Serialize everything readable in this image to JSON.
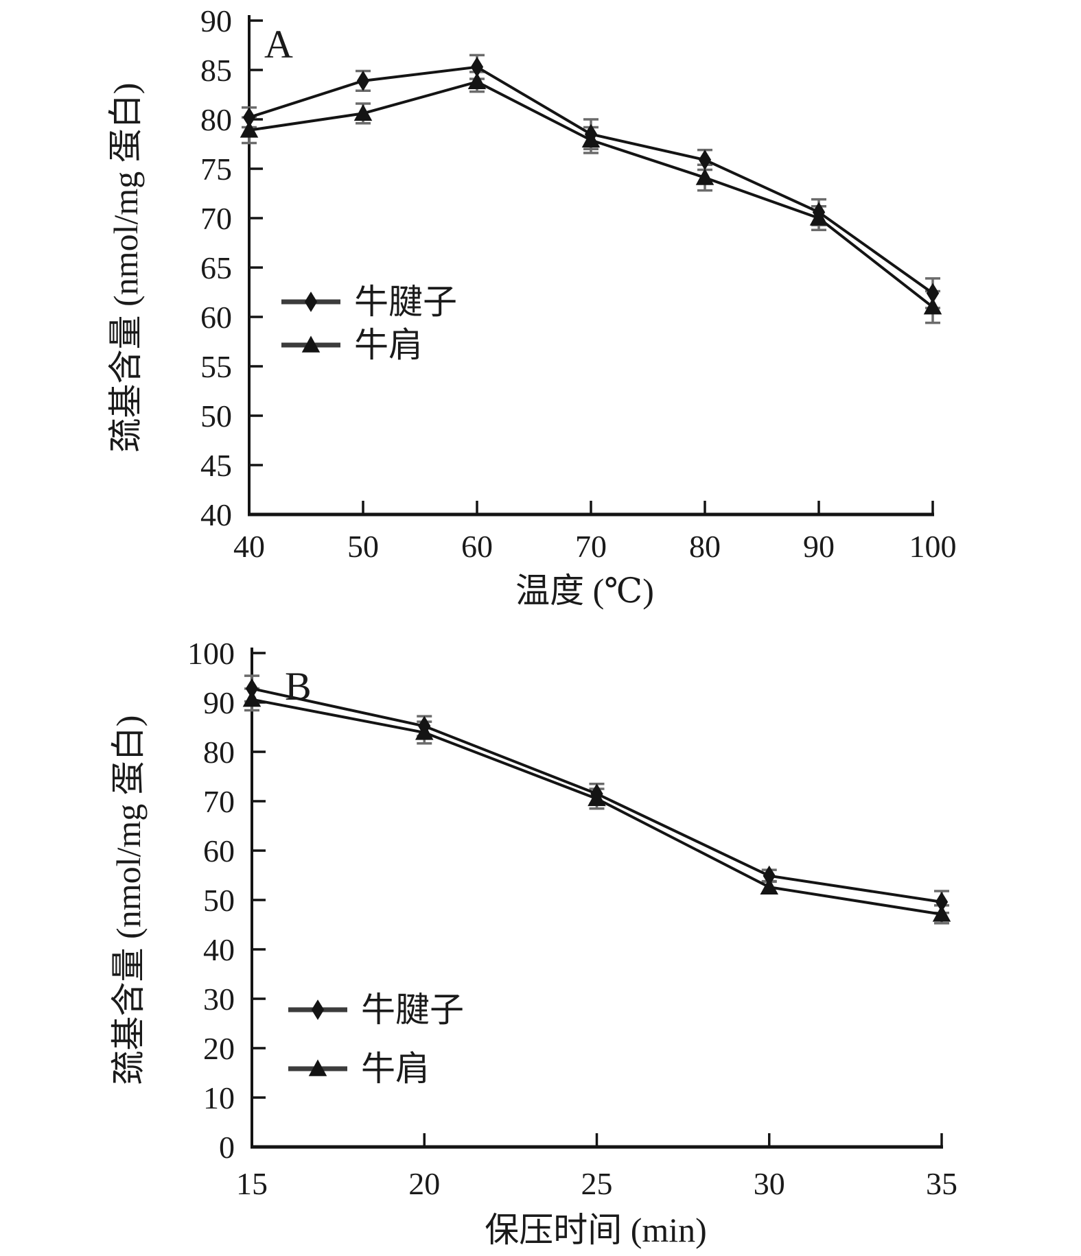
{
  "figure": {
    "description": "Two stacked line charts with error bars comparing sulfhydryl content of two beef cuts",
    "background_color": "#ffffff",
    "text_color": "#1a1a1a",
    "line_color": "#141414",
    "error_bar_color": "#6b6b6b",
    "legend_line_color": "#3c3c3c"
  },
  "chart_data": [
    {
      "type": "line",
      "panel_label": "A",
      "title": "",
      "xlabel": "温度 (℃)",
      "ylabel": "巯基含量 (nmol/mg 蛋白)",
      "x": [
        40,
        50,
        60,
        70,
        80,
        90,
        100
      ],
      "xlim": [
        40,
        100
      ],
      "ylim": [
        40,
        90
      ],
      "ytick_step": 5,
      "grid": false,
      "legend_position": "inside-left-middle",
      "series": [
        {
          "name": "牛腱子",
          "marker": "diamond",
          "values": [
            80.2,
            83.9,
            85.3,
            78.5,
            75.9,
            70.6,
            62.4
          ],
          "errors": [
            1.0,
            1.0,
            1.2,
            1.5,
            1.0,
            1.3,
            1.5
          ]
        },
        {
          "name": "牛肩",
          "marker": "triangle",
          "values": [
            78.9,
            80.6,
            83.8,
            77.9,
            74.1,
            70.0,
            61.0
          ],
          "errors": [
            1.3,
            1.0,
            1.0,
            1.3,
            1.3,
            1.2,
            1.6
          ]
        }
      ]
    },
    {
      "type": "line",
      "panel_label": "B",
      "title": "",
      "xlabel": "保压时间 (min)",
      "ylabel": "巯基含量 (nmol/mg 蛋白)",
      "x": [
        15,
        20,
        25,
        30,
        35
      ],
      "xlim": [
        15,
        35
      ],
      "ylim": [
        0,
        100
      ],
      "ytick_step": 10,
      "grid": false,
      "legend_position": "inside-left-lower-middle",
      "series": [
        {
          "name": "牛腱子",
          "marker": "diamond",
          "values": [
            92.8,
            85.2,
            71.5,
            54.9,
            49.6
          ],
          "errors": [
            2.6,
            2.0,
            2.0,
            1.2,
            2.2
          ]
        },
        {
          "name": "牛肩",
          "marker": "triangle",
          "values": [
            90.6,
            83.9,
            70.5,
            52.6,
            47.1
          ],
          "errors": [
            2.2,
            2.2,
            2.0,
            1.2,
            1.8
          ]
        }
      ]
    }
  ]
}
